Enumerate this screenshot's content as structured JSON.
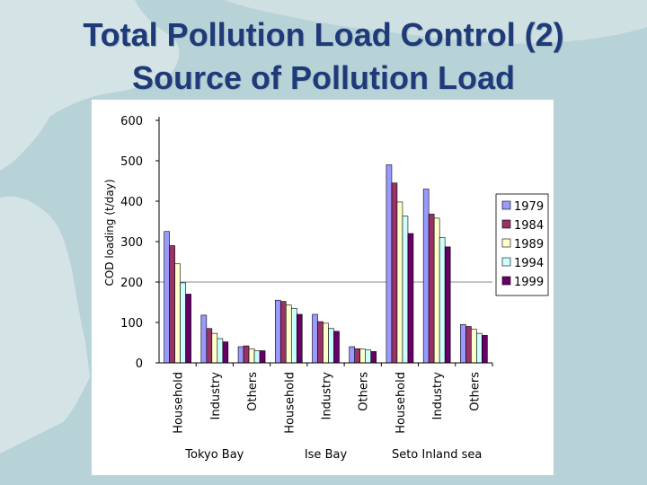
{
  "slide": {
    "title_line1": "Total Pollution Load Control (2)",
    "title_line2": "Source of Pollution Load"
  },
  "colors": {
    "background": "#b8d3d8",
    "land": "#d4e3e6",
    "title": "#1f3a78"
  },
  "chart_data": {
    "type": "bar",
    "title": "",
    "ylabel": "COD loading (t/day)",
    "xlabel": "",
    "ylim": [
      0,
      600
    ],
    "yticks": [
      0,
      100,
      200,
      300,
      400,
      500,
      600
    ],
    "reference_line": 200,
    "legend_position": "right",
    "categories": [
      "Household",
      "Industry",
      "Others",
      "Household",
      "Industry",
      "Others",
      "Household",
      "Industry",
      "Others"
    ],
    "groups": [
      {
        "name": "Tokyo Bay",
        "categories": [
          "Household",
          "Industry",
          "Others"
        ]
      },
      {
        "name": "Ise Bay",
        "categories": [
          "Household",
          "Industry",
          "Others"
        ]
      },
      {
        "name": "Seto Inland sea",
        "categories": [
          "Household",
          "Industry",
          "Others"
        ]
      }
    ],
    "series": [
      {
        "name": "1979",
        "color": "#9999ff",
        "values": [
          325,
          118,
          40,
          155,
          120,
          40,
          490,
          430,
          95
        ]
      },
      {
        "name": "1984",
        "color": "#993366",
        "values": [
          290,
          85,
          42,
          152,
          102,
          35,
          445,
          368,
          90
        ]
      },
      {
        "name": "1989",
        "color": "#ffffcc",
        "values": [
          245,
          73,
          35,
          143,
          98,
          34,
          398,
          358,
          83
        ]
      },
      {
        "name": "1994",
        "color": "#ccffff",
        "values": [
          198,
          60,
          30,
          135,
          85,
          32,
          363,
          310,
          73
        ]
      },
      {
        "name": "1999",
        "color": "#660066",
        "values": [
          170,
          52,
          30,
          120,
          78,
          28,
          320,
          287,
          68
        ]
      }
    ]
  }
}
